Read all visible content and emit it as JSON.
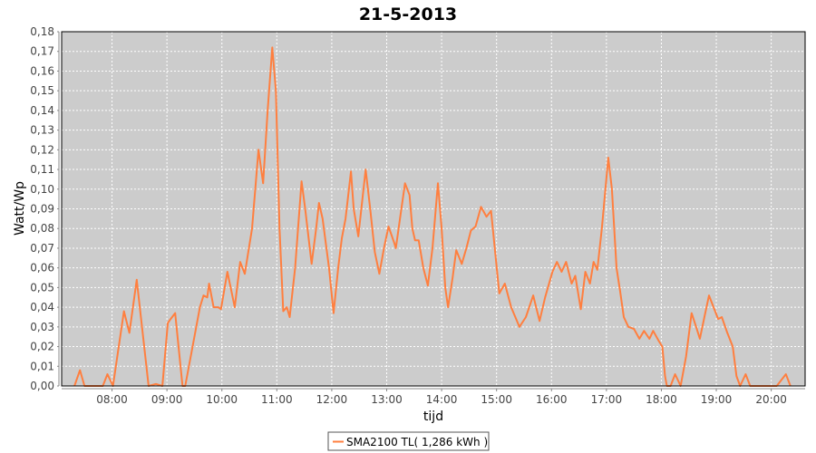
{
  "chart_data": {
    "type": "line",
    "title": "21-5-2013",
    "xlabel": "tijd",
    "ylabel": "Watt/Wp",
    "xlim": [
      "07:05",
      "20:37"
    ],
    "ylim": [
      0,
      0.18
    ],
    "x_ticks": [
      "08:00",
      "09:00",
      "10:00",
      "11:00",
      "12:00",
      "13:00",
      "14:00",
      "15:00",
      "16:00",
      "17:00",
      "18:00",
      "19:00",
      "20:00"
    ],
    "y_ticks": [
      "0,00",
      "0,01",
      "0,02",
      "0,03",
      "0,04",
      "0,05",
      "0,06",
      "0,07",
      "0,08",
      "0,09",
      "0,10",
      "0,11",
      "0,12",
      "0,13",
      "0,14",
      "0,15",
      "0,16",
      "0,17",
      "0,18"
    ],
    "grid": true,
    "background": "#cccccc",
    "legend_placement": "bottom",
    "series": [
      {
        "name": "SMA2100 TL( 1,286 kWh )",
        "color": "#ff7f3f",
        "points": [
          [
            "07:19",
            0
          ],
          [
            "07:25",
            0.008
          ],
          [
            "07:30",
            0
          ],
          [
            "07:50",
            0
          ],
          [
            "07:55",
            0.006
          ],
          [
            "08:01",
            0
          ],
          [
            "08:13",
            0.038
          ],
          [
            "08:19",
            0.027
          ],
          [
            "08:27",
            0.054
          ],
          [
            "08:40",
            0
          ],
          [
            "08:48",
            0.001
          ],
          [
            "08:55",
            0
          ],
          [
            "09:01",
            0.032
          ],
          [
            "09:04",
            0.034
          ],
          [
            "09:09",
            0.037
          ],
          [
            "09:17",
            0
          ],
          [
            "09:20",
            0
          ],
          [
            "09:28",
            0.02
          ],
          [
            "09:36",
            0.04
          ],
          [
            "09:40",
            0.046
          ],
          [
            "09:44",
            0.045
          ],
          [
            "09:46",
            0.052
          ],
          [
            "09:51",
            0.04
          ],
          [
            "09:56",
            0.04
          ],
          [
            "09:59",
            0.039
          ],
          [
            "10:06",
            0.058
          ],
          [
            "10:14",
            0.04
          ],
          [
            "10:20",
            0.063
          ],
          [
            "10:25",
            0.057
          ],
          [
            "10:33",
            0.08
          ],
          [
            "10:40",
            0.12
          ],
          [
            "10:45",
            0.103
          ],
          [
            "10:50",
            0.14
          ],
          [
            "10:55",
            0.172
          ],
          [
            "10:59",
            0.15
          ],
          [
            "11:03",
            0.08
          ],
          [
            "11:07",
            0.038
          ],
          [
            "11:11",
            0.04
          ],
          [
            "11:14",
            0.035
          ],
          [
            "11:20",
            0.06
          ],
          [
            "11:27",
            0.104
          ],
          [
            "11:31",
            0.09
          ],
          [
            "11:38",
            0.062
          ],
          [
            "11:43",
            0.08
          ],
          [
            "11:46",
            0.093
          ],
          [
            "11:50",
            0.085
          ],
          [
            "11:57",
            0.06
          ],
          [
            "12:02",
            0.037
          ],
          [
            "12:07",
            0.06
          ],
          [
            "12:11",
            0.075
          ],
          [
            "12:15",
            0.085
          ],
          [
            "12:21",
            0.109
          ],
          [
            "12:24",
            0.09
          ],
          [
            "12:29",
            0.076
          ],
          [
            "12:37",
            0.11
          ],
          [
            "12:42",
            0.09
          ],
          [
            "12:47",
            0.068
          ],
          [
            "12:52",
            0.057
          ],
          [
            "12:57",
            0.07
          ],
          [
            "13:02",
            0.081
          ],
          [
            "13:08",
            0.073
          ],
          [
            "13:10",
            0.07
          ],
          [
            "13:16",
            0.09
          ],
          [
            "13:20",
            0.103
          ],
          [
            "13:25",
            0.097
          ],
          [
            "13:28",
            0.08
          ],
          [
            "13:31",
            0.074
          ],
          [
            "13:35",
            0.074
          ],
          [
            "13:40",
            0.06
          ],
          [
            "13:45",
            0.051
          ],
          [
            "13:50",
            0.07
          ],
          [
            "13:56",
            0.103
          ],
          [
            "14:00",
            0.08
          ],
          [
            "14:04",
            0.05
          ],
          [
            "14:07",
            0.04
          ],
          [
            "14:12",
            0.055
          ],
          [
            "14:16",
            0.069
          ],
          [
            "14:22",
            0.062
          ],
          [
            "14:27",
            0.07
          ],
          [
            "14:32",
            0.079
          ],
          [
            "14:37",
            0.081
          ],
          [
            "14:43",
            0.091
          ],
          [
            "14:49",
            0.086
          ],
          [
            "14:54",
            0.089
          ],
          [
            "14:58",
            0.07
          ],
          [
            "15:03",
            0.047
          ],
          [
            "15:09",
            0.052
          ],
          [
            "15:16",
            0.04
          ],
          [
            "15:25",
            0.03
          ],
          [
            "15:32",
            0.035
          ],
          [
            "15:40",
            0.046
          ],
          [
            "15:47",
            0.033
          ],
          [
            "15:53",
            0.045
          ],
          [
            "16:01",
            0.058
          ],
          [
            "16:06",
            0.063
          ],
          [
            "16:11",
            0.058
          ],
          [
            "16:16",
            0.063
          ],
          [
            "16:22",
            0.052
          ],
          [
            "16:26",
            0.056
          ],
          [
            "16:32",
            0.039
          ],
          [
            "16:37",
            0.058
          ],
          [
            "16:42",
            0.052
          ],
          [
            "16:46",
            0.063
          ],
          [
            "16:50",
            0.059
          ],
          [
            "16:55",
            0.08
          ],
          [
            "17:02",
            0.116
          ],
          [
            "17:06",
            0.1
          ],
          [
            "17:11",
            0.06
          ],
          [
            "17:15",
            0.048
          ],
          [
            "17:19",
            0.035
          ],
          [
            "17:24",
            0.03
          ],
          [
            "17:30",
            0.029
          ],
          [
            "17:36",
            0.024
          ],
          [
            "17:41",
            0.028
          ],
          [
            "17:47",
            0.024
          ],
          [
            "17:51",
            0.028
          ],
          [
            "17:57",
            0.023
          ],
          [
            "18:01",
            0.02
          ],
          [
            "18:04",
            0.005
          ],
          [
            "18:06",
            0
          ],
          [
            "18:10",
            0
          ],
          [
            "18:15",
            0.006
          ],
          [
            "18:21",
            0
          ],
          [
            "18:27",
            0.015
          ],
          [
            "18:33",
            0.037
          ],
          [
            "18:38",
            0.03
          ],
          [
            "18:42",
            0.024
          ],
          [
            "18:47",
            0.035
          ],
          [
            "18:52",
            0.046
          ],
          [
            "18:57",
            0.04
          ],
          [
            "19:02",
            0.034
          ],
          [
            "19:06",
            0.035
          ],
          [
            "19:12",
            0.027
          ],
          [
            "19:18",
            0.02
          ],
          [
            "19:22",
            0.005
          ],
          [
            "19:26",
            0
          ],
          [
            "19:32",
            0.006
          ],
          [
            "19:37",
            0
          ],
          [
            "20:06",
            0
          ],
          [
            "20:16",
            0.006
          ],
          [
            "20:21",
            0
          ]
        ]
      }
    ]
  }
}
